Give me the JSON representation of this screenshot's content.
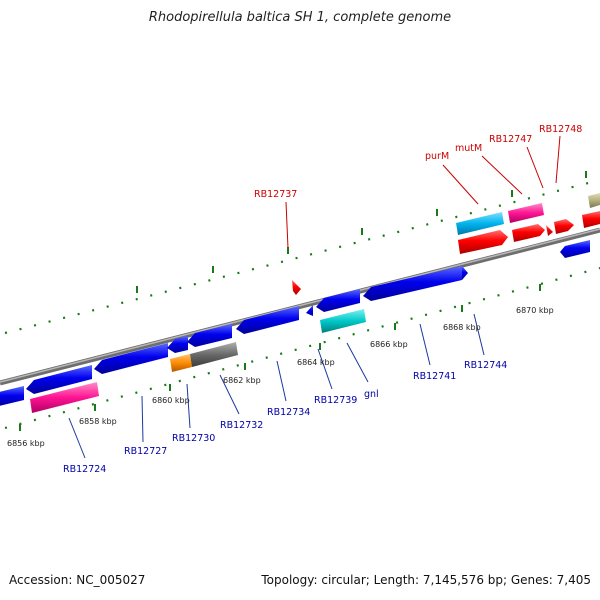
{
  "title": "Rhodopirellula baltica SH 1, complete genome",
  "footer": {
    "accession": "Accession: NC_005027",
    "summary": "Topology: circular; Length: 7,145,576 bp; Genes: 7,405"
  },
  "scale_labels": [
    "6856 kbp",
    "6858 kbp",
    "6860 kbp",
    "6862 kbp",
    "6864 kbp",
    "6866 kbp",
    "6868 kbp",
    "6870 kbp"
  ],
  "gene_labels_top": [
    "RB12737",
    "purM",
    "mutM",
    "RB12747",
    "RB12748"
  ],
  "gene_labels_bottom": [
    "RB12724",
    "RB12727",
    "RB12730",
    "RB12732",
    "RB12734",
    "RB12739",
    "gnl",
    "RB12741",
    "RB12744"
  ],
  "colors": {
    "backbone": "#808080",
    "forward_gene": "#ff0000",
    "reverse_gene": "#0000ee",
    "cyan_gene": "#00bbee",
    "magenta_gene": "#ff1493",
    "teal_gene": "#00cccc",
    "orange_gene": "#ff8c00",
    "gray_gene": "#707070",
    "olive_gene": "#b5b080",
    "tick": "#006400",
    "label_forward": "#cc0000",
    "label_reverse": "#0000aa"
  }
}
